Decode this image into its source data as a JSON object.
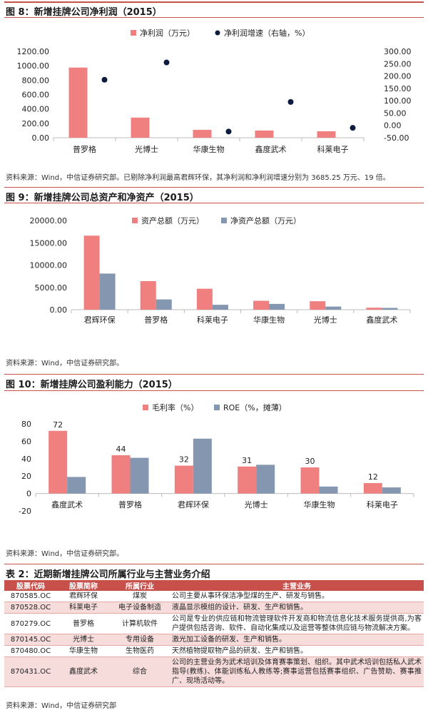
{
  "fig8": {
    "title": "图 8：新增挂牌公司净利润（2015）",
    "source": "资料来源：Wind，中信证券研究部。已剔除净利润最高君辉环保，其净利润和净利润增速分别为 3685.25 万元、19 倍。"
  },
  "fig9": {
    "title": "图 9：新增挂牌公司总资产和净资产（2015）",
    "source": "资料来源：Wind，中信证券研究部。"
  },
  "fig10": {
    "title": "图 10：新增挂牌公司盈利能力（2015）",
    "source": "资料来源：Wind，中信证券研究部。"
  },
  "table2": {
    "title": "表 2：近期新增挂牌公司所属行业与主营业务介绍",
    "headers": [
      "股票代码",
      "股票简称",
      "所属行业",
      "主营业务"
    ],
    "rows": [
      [
        "870585.OC",
        "君辉环保",
        "煤炭",
        "公司主要从事环保洁净型煤的生产、研发与销售。"
      ],
      [
        "870528.OC",
        "科莱电子",
        "电子设备制造",
        "液晶显示模组的设计、研发、生产和销售。"
      ],
      [
        "870279.OC",
        "普罗格",
        "计算机软件",
        "公司是专业的供应链和物流管理软件开发商和物流信息化技术服务提供商,为客户提供包括咨询、软件、自动化集成以及运营等整体供应链与物流解决方案。"
      ],
      [
        "870145.OC",
        "光博士",
        "专用设备",
        "激光加工设备的研发、生产和销售。"
      ],
      [
        "870480.OC",
        "华康生物",
        "生物医药",
        "天然植物提取物产品的研发、生产和销售。"
      ],
      [
        "870431.OC",
        "鑫度武术",
        "综合",
        "公司的主营业务为武术培训及体育赛事策划、组织。其中武术培训包括私人武术指导(教练)、体能训练私人教练等;赛事运营包括赛事组织、广告赞助、赛事推广、现场活动等。"
      ]
    ],
    "source": "资料来源：Wind，中信证券研究部"
  },
  "colors": {
    "red": "#f08080",
    "blue": "#8496b0",
    "navy": "#0d1b3e",
    "rule": "#c8504b"
  },
  "chart_data": [
    {
      "type": "bar",
      "title": "图 8：新增挂牌公司净利润（2015）",
      "categories": [
        "普罗格",
        "光博士",
        "华康生物",
        "鑫度武术",
        "科莱电子"
      ],
      "series": [
        {
          "name": "净利润（万元）",
          "values": [
            975,
            280,
            110,
            100,
            90
          ],
          "axis": "left",
          "mark": "bar"
        },
        {
          "name": "净利润增速（右轴，%）",
          "values": [
            185,
            255,
            -25,
            95,
            -10
          ],
          "axis": "right",
          "mark": "dot"
        }
      ],
      "ylim": [
        0,
        1200
      ],
      "yticks": [
        "0.00",
        "200.00",
        "400.00",
        "600.00",
        "800.00",
        "1000.00",
        "1200.00"
      ],
      "y2lim": [
        -50,
        300
      ],
      "y2ticks": [
        "-50.00",
        "0.00",
        "50.00",
        "100.00",
        "150.00",
        "200.00",
        "250.00",
        "300.00"
      ],
      "legend": "top"
    },
    {
      "type": "bar",
      "title": "图 9：新增挂牌公司总资产和净资产（2015）",
      "categories": [
        "君辉环保",
        "普罗格",
        "科莱电子",
        "华康生物",
        "光博士",
        "鑫度武术"
      ],
      "series": [
        {
          "name": "资产总额（万元）",
          "values": [
            16600,
            6400,
            4700,
            2000,
            1900,
            450
          ]
        },
        {
          "name": "净资产总额（万元）",
          "values": [
            8100,
            2300,
            1100,
            1300,
            700,
            400
          ]
        }
      ],
      "ylim": [
        0,
        20000
      ],
      "yticks": [
        "0.00",
        "5000.00",
        "10000.00",
        "15000.00",
        "20000.00"
      ],
      "legend": "top"
    },
    {
      "type": "bar",
      "title": "图 10：新增挂牌公司盈利能力（2015）",
      "categories": [
        "鑫度武术",
        "普罗格",
        "君辉环保",
        "光博士",
        "华康生物",
        "科莱电子"
      ],
      "series": [
        {
          "name": "毛利率（%）",
          "values": [
            72,
            44,
            32,
            31,
            30,
            12
          ],
          "labels": [
            "72",
            "44",
            "32",
            "31",
            "30",
            "12"
          ]
        },
        {
          "name": "ROE（%，摊薄）",
          "values": [
            19,
            41,
            63,
            33,
            8,
            7
          ]
        }
      ],
      "ylim": [
        -20,
        80
      ],
      "yticks": [
        "-20",
        "0",
        "20",
        "40",
        "60",
        "80"
      ],
      "legend": "top"
    }
  ]
}
